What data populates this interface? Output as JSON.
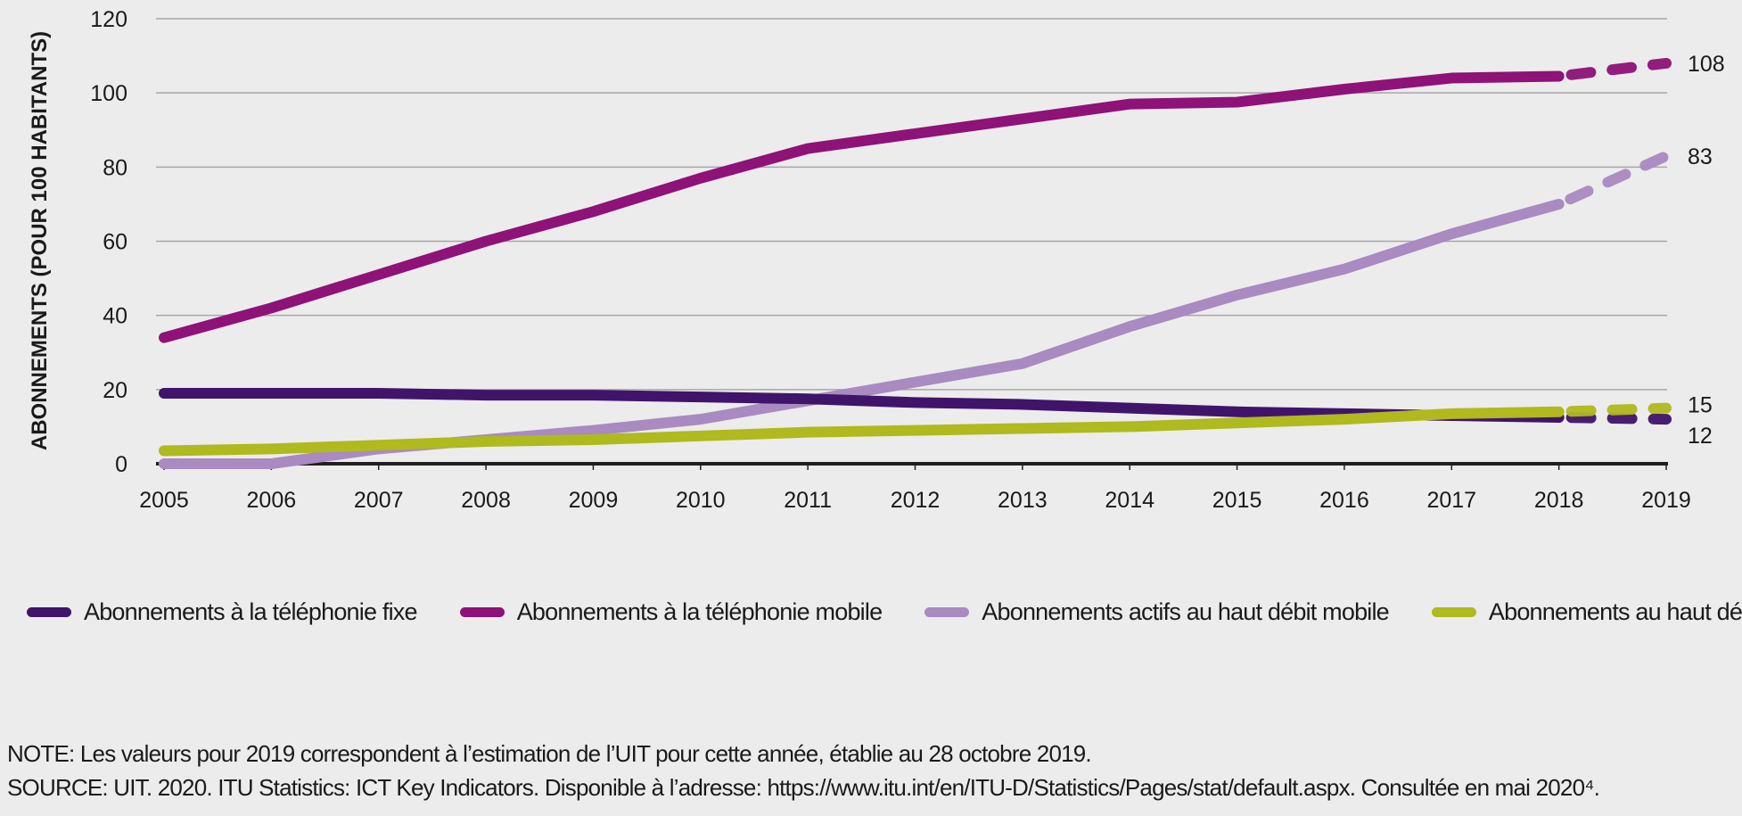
{
  "chart_data": {
    "type": "line",
    "title": "",
    "xlabel": "",
    "ylabel": "ABONNEMENTS (POUR 100 HABITANTS)",
    "ylim": [
      0,
      120
    ],
    "yticks": [
      "0",
      "20",
      "40",
      "60",
      "80",
      "100",
      "120"
    ],
    "grid": true,
    "legend_position": "bottom",
    "x": [
      "2005",
      "2006",
      "2007",
      "2008",
      "2009",
      "2010",
      "2011",
      "2012",
      "2013",
      "2014",
      "2015",
      "2016",
      "2017",
      "2018",
      "2019"
    ],
    "estimated_segment": [
      "2018",
      "2019"
    ],
    "series": [
      {
        "name": "Abonnements à la téléphonie fixe",
        "color": "#41146b",
        "values": [
          19,
          19,
          19,
          18.5,
          18.5,
          18,
          17.5,
          16.5,
          16,
          15,
          14,
          13.5,
          13,
          12.5,
          12
        ],
        "end_label": "12"
      },
      {
        "name": "Abonnements à la téléphonie mobile",
        "color": "#8e1277",
        "values": [
          34,
          42,
          51,
          60,
          68,
          77,
          85,
          89,
          93,
          97,
          97.5,
          101,
          104,
          104.5,
          108
        ],
        "end_label": "108"
      },
      {
        "name": "Abonnements actifs au haut débit mobile",
        "color": "#a98ac1",
        "values": [
          0,
          0,
          4,
          6.5,
          9,
          12,
          17,
          22,
          27,
          37,
          45.5,
          52.5,
          62,
          70,
          83
        ],
        "end_label": "83"
      },
      {
        "name": "Abonnements au haut débit fixe",
        "color": "#aeba1d",
        "values": [
          3.5,
          4,
          5,
          6,
          6.5,
          7.5,
          8.5,
          9,
          9.5,
          10,
          11,
          12,
          13.5,
          14,
          15
        ],
        "end_label": "15"
      }
    ]
  },
  "notes": {
    "note": "NOTE: Les valeurs pour 2019 correspondent à l’estimation de l’UIT pour cette année, établie au 28 octobre 2019.",
    "source": "SOURCE: UIT. 2020. ITU Statistics: ICT Key Indicators. Disponible à l’adresse: https://www.itu.int/en/ITU-D/Statistics/Pages/stat/default.aspx. Consultée en mai 2020⁴."
  }
}
